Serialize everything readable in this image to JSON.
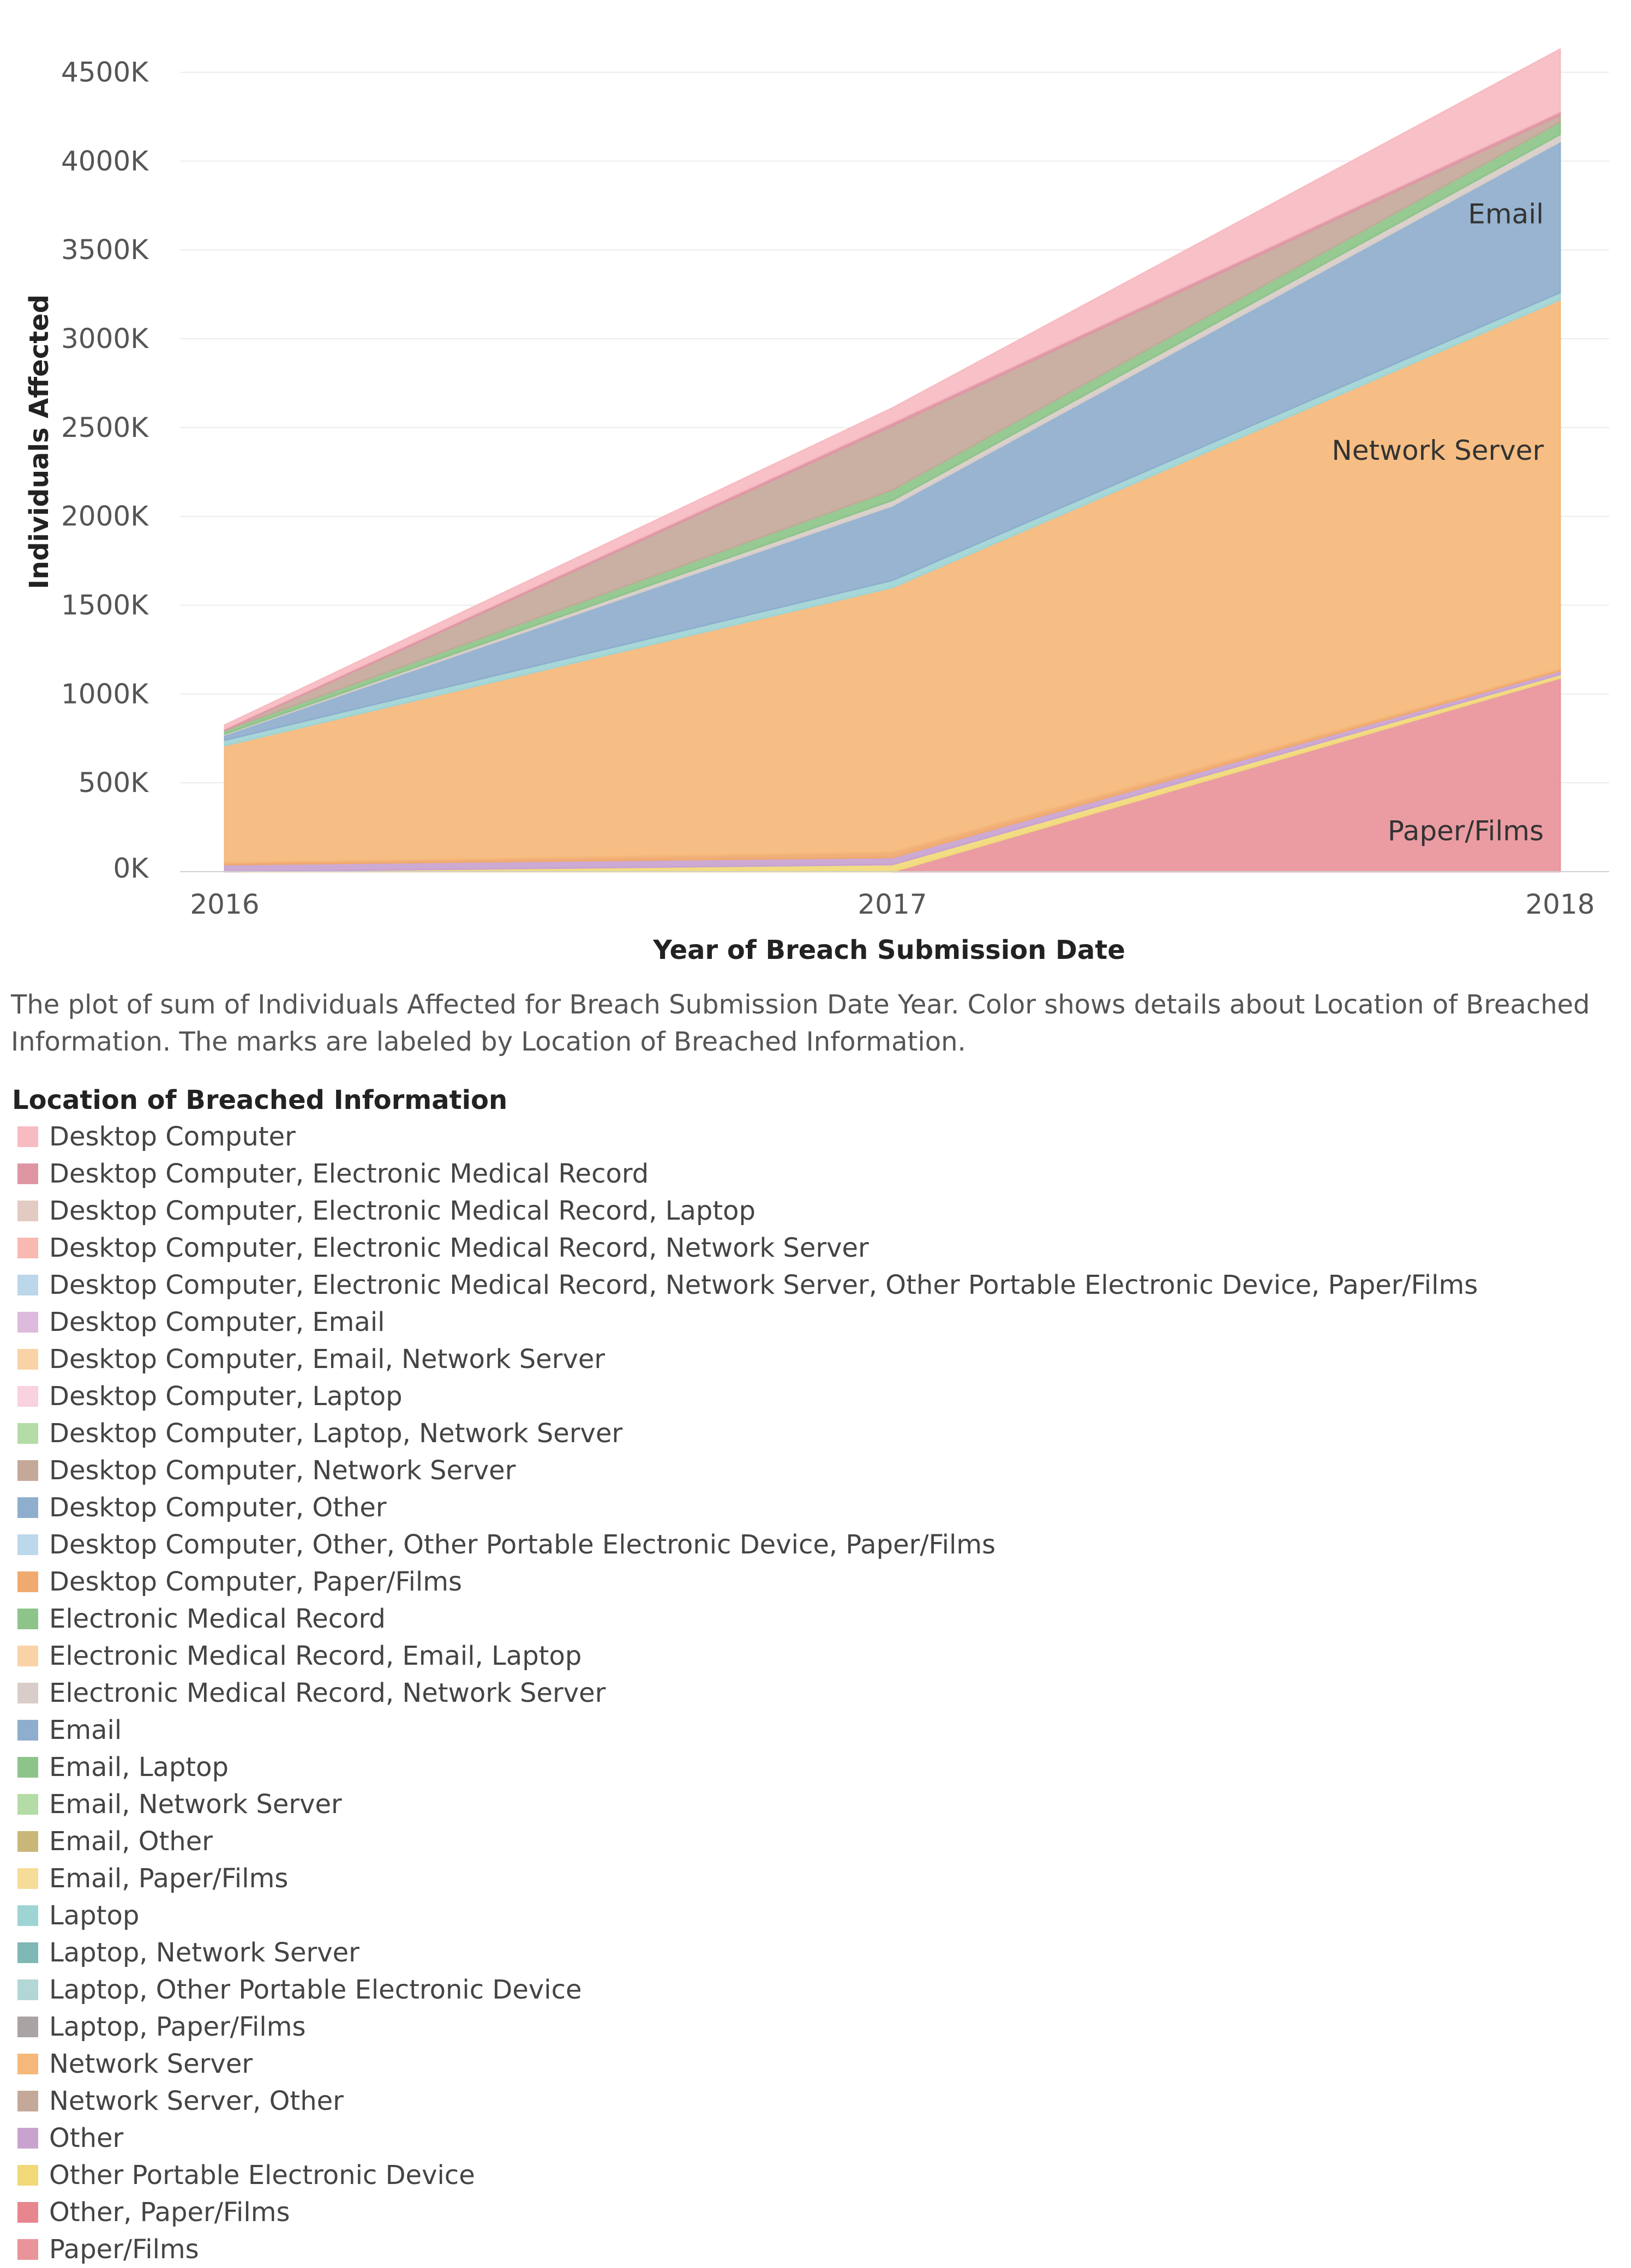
{
  "chart_data": {
    "type": "area",
    "stacked": true,
    "title": "",
    "xlabel": "Year of Breach Submission Date",
    "ylabel": "Individuals Affected",
    "x": [
      "2016",
      "2017",
      "2018"
    ],
    "ylim": [
      0,
      4600000
    ],
    "yticks": [
      0,
      500000,
      1000000,
      1500000,
      2000000,
      2500000,
      3000000,
      3500000,
      4000000,
      4500000
    ],
    "ytick_labels": [
      "0K",
      "500K",
      "1000K",
      "1500K",
      "2000K",
      "2500K",
      "3000K",
      "3500K",
      "4000K",
      "4500K"
    ],
    "grid": true,
    "series": [
      {
        "name": "Paper/Films",
        "color": "#e8949a",
        "values": [
          0,
          0,
          1090000
        ],
        "label": "Paper/Films"
      },
      {
        "name": "Other Portable Electronic Device",
        "color": "#f1d97a",
        "values": [
          0,
          40000,
          20000
        ]
      },
      {
        "name": "Other",
        "color": "#c9a3cf",
        "values": [
          40000,
          40000,
          20000
        ]
      },
      {
        "name": "Desktop Computer, Paper/Films",
        "color": "#f0a96e",
        "values": [
          10000,
          30000,
          10000
        ]
      },
      {
        "name": "Network Server",
        "color": "#f5b87a",
        "values": [
          660000,
          1490000,
          2080000
        ],
        "label": "Network Server"
      },
      {
        "name": "Laptop",
        "color": "#9fd4d4",
        "values": [
          30000,
          40000,
          40000
        ]
      },
      {
        "name": "Email",
        "color": "#8faecd",
        "values": [
          30000,
          420000,
          850000
        ],
        "label": "Email"
      },
      {
        "name": "Electronic Medical Record, Network Server",
        "color": "#d8cdc8",
        "values": [
          5000,
          30000,
          40000
        ]
      },
      {
        "name": "Electronic Medical Record",
        "color": "#8ec48a",
        "values": [
          20000,
          60000,
          70000
        ]
      },
      {
        "name": "Network Server, Other",
        "color": "#c4a99a",
        "values": [
          0,
          360000,
          40000
        ]
      },
      {
        "name": "Desktop Computer, Electronic Medical Record",
        "color": "#df96a4",
        "values": [
          10000,
          20000,
          20000
        ]
      },
      {
        "name": "Desktop Computer",
        "color": "#f7bcc2",
        "values": [
          20000,
          80000,
          350000
        ]
      }
    ],
    "annotations": [
      "Email",
      "Network Server",
      "Paper/Films"
    ]
  },
  "caption": "The plot of sum of Individuals Affected for Breach Submission Date Year.  Color shows details about Location of Breached Information.  The marks are labeled by Location of Breached Information.",
  "legend": {
    "title": "Location of Breached Information",
    "items": [
      {
        "label": "Desktop Computer",
        "color": "#f7bcc2"
      },
      {
        "label": "Desktop Computer, Electronic Medical Record",
        "color": "#df96a4"
      },
      {
        "label": "Desktop Computer, Electronic Medical Record, Laptop",
        "color": "#e2cbc3"
      },
      {
        "label": "Desktop Computer, Electronic Medical Record, Network Server",
        "color": "#f8b9b3"
      },
      {
        "label": "Desktop Computer, Electronic Medical Record, Network Server, Other Portable Electronic Device, Paper/Films",
        "color": "#bcd6ea"
      },
      {
        "label": "Desktop Computer, Email",
        "color": "#dcbbdc"
      },
      {
        "label": "Desktop Computer, Email, Network Server",
        "color": "#f9d3a7"
      },
      {
        "label": "Desktop Computer, Laptop",
        "color": "#f8d2de"
      },
      {
        "label": "Desktop Computer, Laptop, Network Server",
        "color": "#b4dca6"
      },
      {
        "label": "Desktop Computer, Network Server",
        "color": "#c4a99a"
      },
      {
        "label": "Desktop Computer, Other",
        "color": "#8faecd"
      },
      {
        "label": "Desktop Computer, Other, Other Portable Electronic Device, Paper/Films",
        "color": "#bcd9ec"
      },
      {
        "label": "Desktop Computer, Paper/Films",
        "color": "#f0a96e"
      },
      {
        "label": "Electronic Medical Record",
        "color": "#8ec48a"
      },
      {
        "label": "Electronic Medical Record, Email, Laptop",
        "color": "#f9d3a7"
      },
      {
        "label": "Electronic Medical Record, Network Server",
        "color": "#d8cdc8"
      },
      {
        "label": "Email",
        "color": "#8faecd"
      },
      {
        "label": "Email, Laptop",
        "color": "#8ec48a"
      },
      {
        "label": "Email, Network Server",
        "color": "#b4dca6"
      },
      {
        "label": "Email, Other",
        "color": "#c9b77a"
      },
      {
        "label": "Email, Paper/Films",
        "color": "#f5dd98"
      },
      {
        "label": "Laptop",
        "color": "#9fd4d4"
      },
      {
        "label": "Laptop, Network Server",
        "color": "#7fb8b5"
      },
      {
        "label": "Laptop, Other Portable Electronic Device",
        "color": "#b2d7d4"
      },
      {
        "label": "Laptop, Paper/Films",
        "color": "#a9a3a4"
      },
      {
        "label": "Network Server",
        "color": "#f5b87a"
      },
      {
        "label": "Network Server, Other",
        "color": "#c4a99a"
      },
      {
        "label": "Other",
        "color": "#c9a3cf"
      },
      {
        "label": "Other Portable Electronic Device",
        "color": "#f1d97a"
      },
      {
        "label": "Other, Paper/Films",
        "color": "#e7868e"
      },
      {
        "label": "Paper/Films",
        "color": "#e8949a"
      }
    ]
  }
}
